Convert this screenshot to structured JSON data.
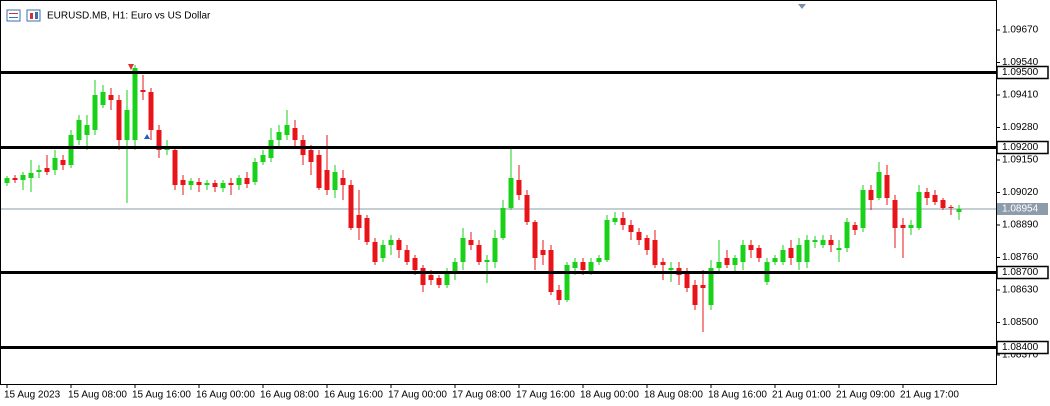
{
  "chart_data": {
    "type": "candlestick",
    "title": "EURUSD.MB, H1:  Euro vs US Dollar",
    "up_color": "#19d119",
    "down_color": "#e8141a",
    "open": [
      1.09058,
      1.09078,
      1.0907,
      1.09078,
      1.09102,
      1.09118,
      1.0911,
      1.0915,
      1.0913,
      1.0923,
      1.0925,
      1.0927,
      1.0937,
      1.0941,
      1.0939,
      1.0923,
      1.0923,
      1.0943,
      1.09422,
      1.0927,
      1.0919,
      1.0919,
      1.0907,
      1.0905,
      1.09062,
      1.0905,
      1.09058,
      1.09038,
      1.09058,
      1.0905,
      1.09078,
      1.09062,
      1.09142,
      1.09158,
      1.0923,
      1.0925,
      1.09278,
      1.0923,
      1.0919,
      1.0917,
      1.0911,
      1.0903,
      1.09078,
      1.0905,
      1.0893,
      1.08918,
      1.08822,
      1.08758,
      1.0881,
      1.0883,
      1.0879,
      1.08758,
      1.08718,
      1.0869,
      1.08678,
      1.0865,
      1.08702,
      1.08742,
      1.0883,
      1.0881,
      1.08742,
      1.08742,
      1.08838,
      1.08958,
      1.0907,
      1.0901,
      1.08902,
      1.0879,
      1.0879,
      1.0863,
      1.0859,
      1.08718,
      1.08742,
      1.08702,
      1.08742,
      1.0875,
      1.08902,
      1.08918,
      1.0889,
      1.08862,
      1.08838,
      1.0883,
      1.08742,
      1.0871,
      1.08718,
      1.08702,
      1.0865,
      1.0865,
      1.0857,
      1.08718,
      1.08758,
      1.0873,
      1.08742,
      1.0881,
      1.08798,
      1.08662,
      1.08742,
      1.08742,
      1.08798,
      1.08742,
      1.08742,
      1.08822,
      1.0881,
      1.0883,
      1.0879,
      1.08798,
      1.0889,
      1.08878,
      1.0903,
      1.08998,
      1.0909,
      1.0899,
      1.0889,
      1.08878,
      1.08878,
      1.09022,
      1.0901,
      1.0899,
      1.08962,
      1.08942
    ],
    "high": [
      1.09086,
      1.0909,
      1.09102,
      1.0915,
      1.0913,
      1.0917,
      1.0919,
      1.0917,
      1.0927,
      1.0933,
      1.0933,
      1.0947,
      1.0945,
      1.09438,
      1.0941,
      1.0943,
      1.0953,
      1.0949,
      1.09438,
      1.0929,
      1.0923,
      1.09198,
      1.0909,
      1.09078,
      1.09078,
      1.0907,
      1.0907,
      1.0907,
      1.09078,
      1.0909,
      1.09102,
      1.09158,
      1.0919,
      1.09278,
      1.0929,
      1.0935,
      1.0931,
      1.0925,
      1.0921,
      1.0919,
      1.0925,
      1.0913,
      1.0911,
      1.0907,
      1.0903,
      1.0893,
      1.08838,
      1.0883,
      1.0885,
      1.08838,
      1.0881,
      1.0877,
      1.0873,
      1.0871,
      1.0869,
      1.08718,
      1.08758,
      1.08878,
      1.08862,
      1.0883,
      1.0877,
      1.0887,
      1.0899,
      1.09198,
      1.0913,
      1.0903,
      1.0891,
      1.0883,
      1.0881,
      1.0865,
      1.08742,
      1.08758,
      1.08758,
      1.08758,
      1.0877,
      1.0893,
      1.08942,
      1.08942,
      1.0891,
      1.08878,
      1.0885,
      1.0887,
      1.08758,
      1.08742,
      1.08742,
      1.08718,
      1.0867,
      1.0871,
      1.0875,
      1.0883,
      1.0879,
      1.0877,
      1.0883,
      1.0883,
      1.0881,
      1.08758,
      1.0877,
      1.0881,
      1.0883,
      1.08838,
      1.0885,
      1.08846,
      1.0885,
      1.0885,
      1.0883,
      1.08918,
      1.08902,
      1.0905,
      1.0905,
      1.09142,
      1.0913,
      1.0901,
      1.08918,
      1.0891,
      1.0905,
      1.09038,
      1.0903,
      1.08998,
      1.0897,
      1.0897
    ],
    "low": [
      1.09046,
      1.09058,
      1.0903,
      1.09022,
      1.09078,
      1.0909,
      1.0909,
      1.0911,
      1.09118,
      1.0921,
      1.0919,
      1.0925,
      1.09358,
      1.0935,
      1.0919,
      1.08978,
      1.0919,
      1.0939,
      1.0923,
      1.09158,
      1.0917,
      1.0903,
      1.0901,
      1.0903,
      1.09022,
      1.0903,
      1.09022,
      1.09022,
      1.0901,
      1.0903,
      1.09038,
      1.0905,
      1.0913,
      1.09142,
      1.09198,
      1.0923,
      1.09198,
      1.0913,
      1.0909,
      1.0903,
      1.0901,
      1.08998,
      1.0899,
      1.0887,
      1.0883,
      1.0881,
      1.0873,
      1.08742,
      1.0877,
      1.08758,
      1.0873,
      1.0869,
      1.08622,
      1.0865,
      1.08638,
      1.08638,
      1.0867,
      1.0871,
      1.0879,
      1.0873,
      1.08658,
      1.08718,
      1.0883,
      1.0895,
      1.0899,
      1.0889,
      1.0871,
      1.0873,
      1.0861,
      1.0857,
      1.08582,
      1.0869,
      1.0869,
      1.0869,
      1.0873,
      1.08742,
      1.0889,
      1.0887,
      1.0883,
      1.0881,
      1.0877,
      1.08718,
      1.0867,
      1.08662,
      1.0865,
      1.08622,
      1.0855,
      1.08462,
      1.0855,
      1.08702,
      1.08718,
      1.08702,
      1.0871,
      1.08758,
      1.08742,
      1.0865,
      1.0873,
      1.0873,
      1.0873,
      1.0871,
      1.08718,
      1.08798,
      1.08798,
      1.08782,
      1.08742,
      1.08782,
      1.0885,
      1.08862,
      1.0895,
      1.0899,
      1.0897,
      1.08798,
      1.08758,
      1.0885,
      1.0887,
      1.0897,
      1.0897,
      1.0895,
      1.0893,
      1.0891
    ],
    "close": [
      1.09078,
      1.0907,
      1.0909,
      1.09098,
      1.0911,
      1.09102,
      1.09158,
      1.0913,
      1.0925,
      1.0931,
      1.0929,
      1.0941,
      1.09422,
      1.0939,
      1.0923,
      1.0935,
      1.09518,
      1.09422,
      1.0927,
      1.0919,
      1.09198,
      1.0905,
      1.0905,
      1.09066,
      1.0905,
      1.09058,
      1.09042,
      1.09058,
      1.0905,
      1.09078,
      1.09054,
      1.09142,
      1.0917,
      1.0923,
      1.09262,
      1.0929,
      1.0923,
      1.0917,
      1.09142,
      1.09038,
      1.0903,
      1.09102,
      1.0905,
      1.08878,
      1.08878,
      1.08822,
      1.08742,
      1.0881,
      1.0883,
      1.0879,
      1.08742,
      1.0871,
      1.0865,
      1.0867,
      1.0865,
      1.08702,
      1.08742,
      1.08838,
      1.0881,
      1.08742,
      1.0875,
      1.08838,
      1.08958,
      1.09078,
      1.0901,
      1.08902,
      1.08758,
      1.0877,
      1.08622,
      1.0859,
      1.0873,
      1.08742,
      1.0871,
      1.08742,
      1.08758,
      1.0891,
      1.08918,
      1.0889,
      1.08862,
      1.0883,
      1.0879,
      1.0873,
      1.0873,
      1.08718,
      1.0869,
      1.08638,
      1.0857,
      1.08638,
      1.08718,
      1.08742,
      1.0873,
      1.08758,
      1.0881,
      1.0879,
      1.08758,
      1.08742,
      1.08758,
      1.0879,
      1.08758,
      1.0881,
      1.0883,
      1.0883,
      1.0883,
      1.0881,
      1.08798,
      1.08902,
      1.0887,
      1.0903,
      1.0899,
      1.09102,
      1.08998,
      1.08878,
      1.08878,
      1.0889,
      1.09022,
      1.08998,
      1.08982,
      1.08958,
      1.08958,
      1.08954
    ],
    "xlim": [
      -0.875,
      123.625
    ],
    "ylim": [
      1.08254,
      1.0979
    ],
    "xticks": [
      {
        "value": 0,
        "label": "15 Aug 2023"
      },
      {
        "value": 8,
        "label": "15 Aug 08:00"
      },
      {
        "value": 16,
        "label": "15 Aug 16:00"
      },
      {
        "value": 24,
        "label": "16 Aug 00:00"
      },
      {
        "value": 32,
        "label": "16 Aug 08:00"
      },
      {
        "value": 40,
        "label": "16 Aug 16:00"
      },
      {
        "value": 48,
        "label": "17 Aug 00:00"
      },
      {
        "value": 56,
        "label": "17 Aug 08:00"
      },
      {
        "value": 64,
        "label": "17 Aug 16:00"
      },
      {
        "value": 72,
        "label": "18 Aug 00:00"
      },
      {
        "value": 80,
        "label": "18 Aug 08:00"
      },
      {
        "value": 88,
        "label": "18 Aug 16:00"
      },
      {
        "value": 96,
        "label": "21 Aug 01:00"
      },
      {
        "value": 104,
        "label": "21 Aug 09:00"
      },
      {
        "value": 112,
        "label": "21 Aug 17:00"
      }
    ],
    "yticks": [
      {
        "value": 1.0967,
        "label": "1.09670"
      },
      {
        "value": 1.0954,
        "label": "1.09540"
      },
      {
        "value": 1.0941,
        "label": "1.09410"
      },
      {
        "value": 1.0928,
        "label": "1.09280"
      },
      {
        "value": 1.0915,
        "label": "1.09150"
      },
      {
        "value": 1.0902,
        "label": "1.09020"
      },
      {
        "value": 1.0889,
        "label": "1.08890"
      },
      {
        "value": 1.0876,
        "label": "1.08760"
      },
      {
        "value": 1.0863,
        "label": "1.08630"
      },
      {
        "value": 1.085,
        "label": "1.08500"
      },
      {
        "value": 1.0837,
        "label": "1.08370"
      }
    ],
    "levels": [
      {
        "value": 1.095,
        "label": "1.09500"
      },
      {
        "value": 1.092,
        "label": "1.09200"
      },
      {
        "value": 1.087,
        "label": "1.08700"
      },
      {
        "value": 1.084,
        "label": "1.08400"
      }
    ],
    "level_color": "#000000",
    "current_price": {
      "value": 1.08954,
      "label": "1.08954",
      "color": "#8c9cab"
    }
  }
}
